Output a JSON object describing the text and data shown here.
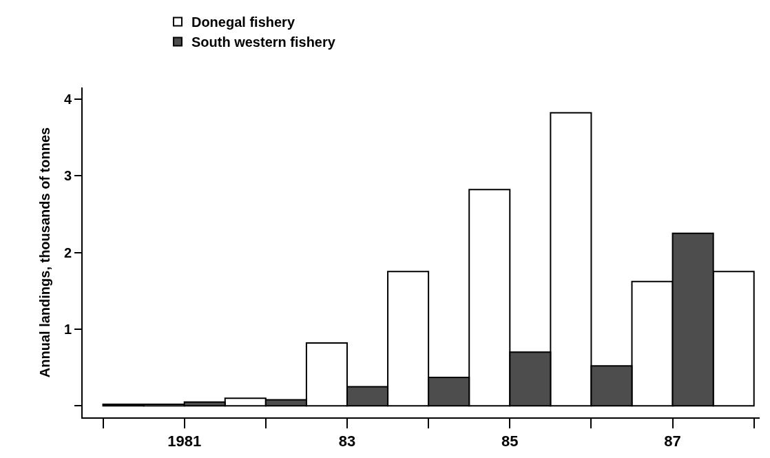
{
  "chart_data": {
    "type": "bar",
    "ylabel": "Annual landings, thousands of tonnes",
    "series": [
      {
        "name": "Donegal fishery",
        "color": "#ffffff",
        "x": [
          1980.75,
          1981.75,
          1982.75,
          1983.75,
          1984.75,
          1985.75,
          1986.75,
          1987.75
        ],
        "values": [
          0.02,
          0.1,
          0.82,
          1.75,
          2.82,
          3.82,
          1.62,
          1.75
        ]
      },
      {
        "name": "South western fishery",
        "color": "#4d4d4d",
        "x": [
          1980.25,
          1981.25,
          1982.25,
          1983.25,
          1984.25,
          1985.25,
          1986.25,
          1987.25
        ],
        "values": [
          0.02,
          0.05,
          0.08,
          0.25,
          0.37,
          0.7,
          0.52,
          2.25
        ]
      }
    ],
    "xlim": [
      1979.75,
      1988.07
    ],
    "xticks": [
      {
        "value": 1980,
        "label": null
      },
      1981,
      {
        "value": 1982,
        "label": null
      },
      {
        "value": 1983,
        "label": "83"
      },
      {
        "value": 1984,
        "label": null
      },
      {
        "value": 1985,
        "label": "85"
      },
      {
        "value": 1986,
        "label": null
      },
      {
        "value": 1987,
        "label": "87"
      },
      {
        "value": 1988,
        "label": null
      }
    ],
    "ylim": [
      -0.15,
      4.15
    ],
    "yticks": [
      {
        "value": 0,
        "label": null
      },
      1,
      2,
      3,
      4
    ],
    "legend": "top left"
  }
}
